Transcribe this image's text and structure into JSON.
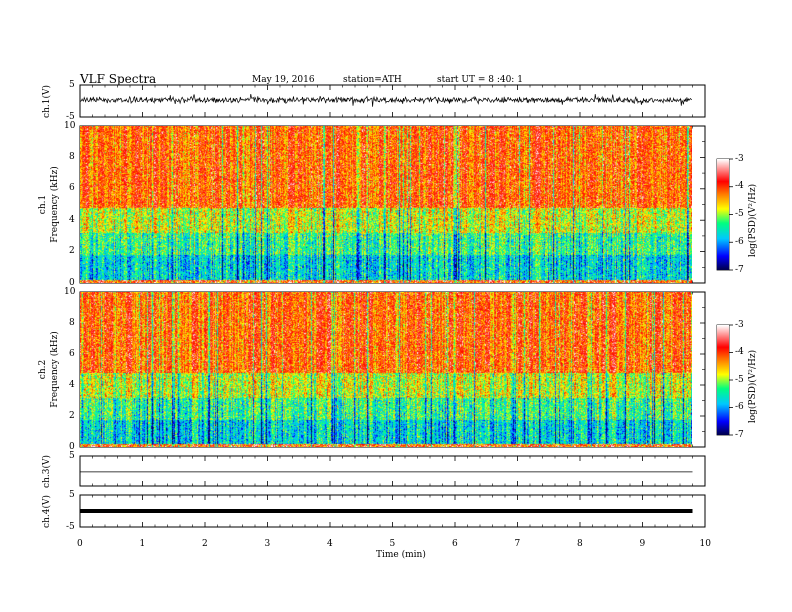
{
  "header": {
    "title": "VLF  Spectra",
    "date": "May 19, 2016",
    "station": "station=ATH",
    "start": "start  UT =   8 :40: 1"
  },
  "chart_data": [
    {
      "type": "line",
      "name": "ch1-waveform",
      "ylabel": "ch.1(V)",
      "ylim": [
        -5,
        5
      ],
      "yticks": [
        "5",
        "-5"
      ],
      "xlim": [
        0,
        10
      ],
      "xrange_data": [
        0,
        9.8
      ]
    },
    {
      "type": "heatmap",
      "name": "ch1-spectrogram",
      "ylabel": "ch.1\nFrequency  (kHz)",
      "ylabel_line1": "ch.1",
      "ylabel_line2": "Frequency  (kHz)",
      "ylim": [
        0,
        10
      ],
      "yticks": [
        "10",
        "8",
        "6",
        "4",
        "2",
        "0"
      ],
      "xlim": [
        0,
        10
      ],
      "xrange_data": [
        0,
        9.8
      ],
      "colorbar": {
        "label": "log(PSD)(V²/Hz)",
        "range": [
          -7,
          -3
        ],
        "ticks": [
          "-3",
          "-4",
          "-5",
          "-6",
          "-7"
        ],
        "colors": [
          "#000080",
          "#0000ff",
          "#00c8ff",
          "#00ff80",
          "#ffff00",
          "#ff8000",
          "#ff0000",
          "#ffffff"
        ]
      }
    },
    {
      "type": "heatmap",
      "name": "ch2-spectrogram",
      "ylabel": "ch.2\nFrequency  (kHz)",
      "ylabel_line1": "ch.2",
      "ylabel_line2": "Frequency  (kHz)",
      "ylim": [
        0,
        10
      ],
      "yticks": [
        "10",
        "8",
        "6",
        "4",
        "2",
        "0"
      ],
      "xlim": [
        0,
        10
      ],
      "xrange_data": [
        0,
        9.8
      ],
      "colorbar": {
        "label": "log(PSD)(V²/Hz)",
        "range": [
          -7,
          -3
        ],
        "ticks": [
          "-3",
          "-4",
          "-5",
          "-6",
          "-7"
        ],
        "colors": [
          "#000080",
          "#0000ff",
          "#00c8ff",
          "#00ff80",
          "#ffff00",
          "#ff8000",
          "#ff0000",
          "#ffffff"
        ]
      }
    },
    {
      "type": "line",
      "name": "ch3-waveform",
      "ylabel": "ch.3(V)",
      "ylim": [
        -5,
        5
      ],
      "yticks": [
        "5"
      ],
      "xlim": [
        0,
        10
      ],
      "xrange_data": [
        0,
        9.8
      ],
      "level": -0.3
    },
    {
      "type": "line",
      "name": "ch4-waveform",
      "ylabel": "ch.4(V)",
      "ylim": [
        -5,
        5
      ],
      "yticks": [
        "5",
        "-5"
      ],
      "xlim": [
        0,
        10
      ],
      "xrange_data": [
        0,
        9.8
      ],
      "level": 0
    }
  ],
  "xaxis": {
    "label": "Time  (min)",
    "ticks": [
      "0",
      "1",
      "2",
      "3",
      "4",
      "5",
      "6",
      "7",
      "8",
      "9",
      "10"
    ]
  }
}
